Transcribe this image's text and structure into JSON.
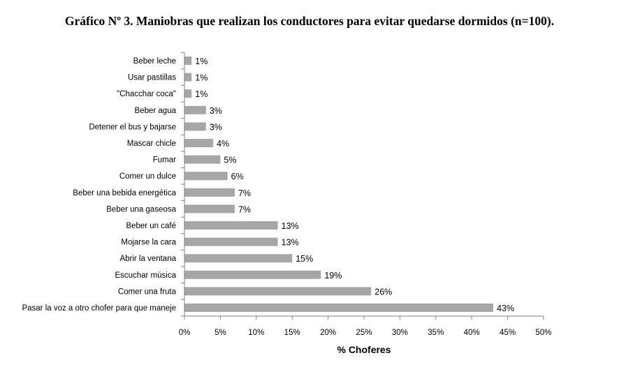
{
  "chart_data": {
    "type": "bar",
    "orientation": "horizontal",
    "title": "Gráfico Nº 3. Maniobras que realizan los conductores para evitar quedarse dormidos (n=100).",
    "xlabel": "% Choferes",
    "ylabel": "",
    "xlim": [
      0,
      50
    ],
    "x_ticks": [
      "0%",
      "5%",
      "10%",
      "15%",
      "20%",
      "25%",
      "30%",
      "35%",
      "40%",
      "45%",
      "50%"
    ],
    "grid": false,
    "legend": "none",
    "bar_color": "#a6a6a6",
    "categories": [
      "Beber leche",
      "Usar pastillas",
      "\"Chacchar coca\"",
      "Beber agua",
      "Detener el bus y bajarse",
      "Mascar chicle",
      "Fumar",
      "Comer un dulce",
      "Beber una bebida energética",
      "Beber una gaseosa",
      "Beber un café",
      "Mojarse la cara",
      "Abrir la ventana",
      "Escuchar música",
      "Comer una fruta",
      "Pasar la voz a otro chofer para que maneje"
    ],
    "values": [
      1,
      1,
      1,
      3,
      3,
      4,
      5,
      6,
      7,
      7,
      13,
      13,
      15,
      19,
      26,
      43
    ],
    "value_labels": [
      "1%",
      "1%",
      "1%",
      "3%",
      "3%",
      "4%",
      "5%",
      "6%",
      "7%",
      "7%",
      "13%",
      "13%",
      "15%",
      "19%",
      "26%",
      "43%"
    ]
  }
}
